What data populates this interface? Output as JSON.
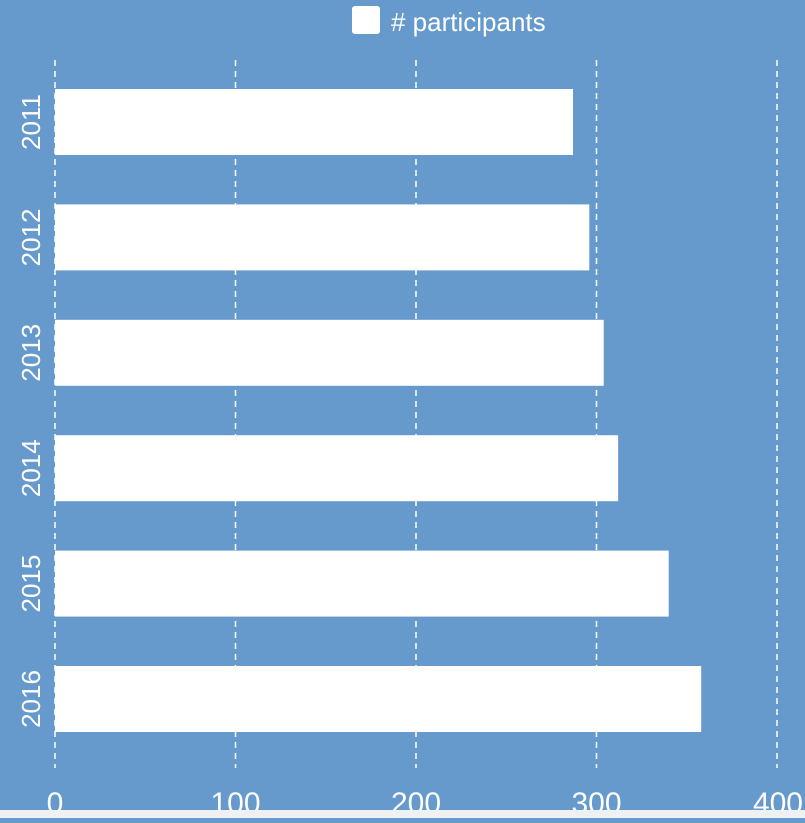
{
  "colors": {
    "background": "#6699cc",
    "bar": "#ffffff",
    "grid": "#ffffff",
    "text": "#ffffff"
  },
  "chart_data": {
    "type": "bar",
    "orientation": "horizontal",
    "categories": [
      "2011",
      "2012",
      "2013",
      "2014",
      "2015",
      "2016"
    ],
    "series": [
      {
        "name": "# participants",
        "values": [
          287,
          296,
          304,
          312,
          340,
          358
        ]
      }
    ],
    "xlim": [
      0,
      400
    ],
    "x_ticks": [
      "0",
      "100",
      "200",
      "300",
      "400"
    ],
    "grid": {
      "vertical": true,
      "horizontal": false,
      "style": "dashed"
    },
    "legend_position": "top-center",
    "title": "",
    "xlabel": "",
    "ylabel": ""
  }
}
